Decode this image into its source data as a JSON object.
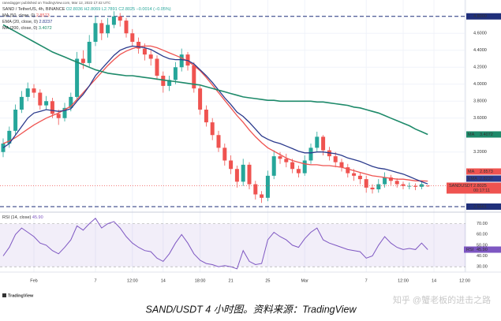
{
  "header": {
    "publisher": "ranedagger published on TradingView.com, Mar 12, 2022 17:42 UTC",
    "symbol": "SAND / TetherUS, 4h, BINANCE",
    "ohlc": "O2.8036 H2.8069 L2.7891 C2.8025 −0.0014 (−0.05%)"
  },
  "chart_data": {
    "type": "candlestick",
    "categories": [
      null,
      null,
      null,
      null,
      null,
      "Feb",
      null,
      null,
      null,
      null,
      null,
      null,
      null,
      null,
      null,
      "7",
      null,
      null,
      null,
      null,
      null,
      "12:00",
      null,
      null,
      null,
      null,
      "14",
      null,
      null,
      null,
      null,
      null,
      "18:00",
      null,
      null,
      null,
      null,
      "21",
      null,
      null,
      null,
      null,
      null,
      "25",
      null,
      null,
      null,
      null,
      null,
      "Mar",
      null,
      null,
      null,
      null,
      null,
      null,
      null,
      null,
      null,
      "7",
      null,
      null,
      null,
      null,
      null,
      "12:00",
      null,
      null,
      null,
      null,
      "14",
      null,
      null,
      null,
      null,
      "12:00"
    ],
    "open": [
      3.2,
      3.3,
      3.45,
      3.7,
      3.85,
      3.95,
      3.9,
      3.75,
      3.8,
      3.65,
      3.6,
      3.72,
      3.85,
      4.3,
      4.25,
      4.5,
      4.72,
      4.6,
      4.7,
      4.8,
      4.75,
      4.6,
      4.5,
      4.42,
      4.35,
      4.3,
      4.1,
      3.98,
      4.05,
      4.2,
      4.35,
      4.22,
      3.95,
      3.7,
      3.55,
      3.4,
      3.25,
      3.1,
      3.0,
      2.85,
      3.05,
      2.82,
      2.7,
      2.66,
      2.92,
      3.15,
      3.12,
      3.08,
      3.0,
      2.95,
      3.1,
      3.25,
      3.38,
      3.22,
      3.15,
      3.08,
      3.02,
      2.95,
      2.92,
      2.88,
      2.78,
      2.76,
      2.82,
      2.9,
      2.86,
      2.82,
      2.8,
      2.8,
      2.79,
      2.8036,
      null,
      null,
      null,
      null,
      null,
      null
    ],
    "high": [
      3.36,
      3.5,
      3.76,
      3.92,
      4.02,
      4.0,
      3.94,
      3.86,
      3.84,
      3.7,
      3.78,
      3.9,
      4.38,
      4.4,
      4.58,
      4.8,
      4.76,
      4.78,
      4.86,
      4.84,
      4.78,
      4.65,
      4.55,
      4.48,
      4.4,
      4.34,
      4.15,
      4.1,
      4.26,
      4.42,
      4.38,
      4.26,
      3.98,
      3.75,
      3.6,
      3.45,
      3.3,
      3.16,
      3.04,
      3.12,
      3.08,
      2.86,
      2.74,
      2.98,
      3.22,
      3.2,
      3.18,
      3.12,
      3.04,
      3.16,
      3.3,
      3.44,
      3.4,
      3.26,
      3.2,
      3.12,
      3.06,
      3.0,
      2.96,
      2.92,
      2.82,
      2.88,
      2.96,
      2.93,
      2.89,
      2.85,
      2.84,
      2.83,
      2.86,
      2.8069,
      null,
      null,
      null,
      null,
      null,
      null
    ],
    "low": [
      3.14,
      3.25,
      3.4,
      3.66,
      3.8,
      3.84,
      3.7,
      3.7,
      3.6,
      3.52,
      3.56,
      3.68,
      3.82,
      4.18,
      4.2,
      4.45,
      4.52,
      4.55,
      4.66,
      4.68,
      4.55,
      4.44,
      4.36,
      4.28,
      4.22,
      4.05,
      3.9,
      3.92,
      4.0,
      4.15,
      4.16,
      3.9,
      3.64,
      3.5,
      3.34,
      3.2,
      3.04,
      2.94,
      2.78,
      2.8,
      2.76,
      2.64,
      2.6,
      2.62,
      2.88,
      3.06,
      3.02,
      2.95,
      2.9,
      2.92,
      3.06,
      3.2,
      3.16,
      3.1,
      3.02,
      2.97,
      2.9,
      2.86,
      2.82,
      2.72,
      2.71,
      2.72,
      2.78,
      2.81,
      2.78,
      2.76,
      2.76,
      2.75,
      2.76,
      2.7891,
      null,
      null,
      null,
      null,
      null,
      null
    ],
    "close": [
      3.3,
      3.45,
      3.7,
      3.85,
      3.95,
      3.9,
      3.75,
      3.8,
      3.65,
      3.6,
      3.72,
      3.85,
      4.3,
      4.25,
      4.5,
      4.72,
      4.6,
      4.7,
      4.8,
      4.75,
      4.6,
      4.5,
      4.42,
      4.35,
      4.3,
      4.1,
      3.98,
      4.05,
      4.2,
      4.35,
      4.22,
      3.95,
      3.7,
      3.55,
      3.4,
      3.25,
      3.1,
      3.0,
      2.85,
      3.05,
      2.82,
      2.7,
      2.66,
      2.92,
      3.15,
      3.12,
      3.08,
      3.0,
      2.95,
      3.1,
      3.25,
      3.38,
      3.22,
      3.15,
      3.08,
      3.02,
      2.95,
      2.92,
      2.88,
      2.78,
      2.76,
      2.82,
      2.9,
      2.86,
      2.82,
      2.8,
      2.8,
      2.79,
      2.82,
      2.8025,
      null,
      null,
      null,
      null,
      null,
      null
    ],
    "up_color": "#26a69a",
    "down_color": "#ef5350",
    "ylim": [
      2.5,
      4.9
    ],
    "yticks": [
      {
        "value": 4.6,
        "label": "4.6000"
      },
      {
        "value": 4.4,
        "label": "4.4000"
      },
      {
        "value": 4.2,
        "label": "4.2000"
      },
      {
        "value": 4.0,
        "label": "4.0000"
      },
      {
        "value": 3.8,
        "label": "3.8000"
      },
      {
        "value": 3.6,
        "label": "3.6000"
      },
      {
        "value": 3.2,
        "label": "3.2000"
      }
    ],
    "grid": true,
    "levels": {
      "color": "#1f2f7a",
      "lines": [
        {
          "value": 4.8,
          "label": "4.8000"
        },
        {
          "value": 2.5561,
          "label": "2.5561"
        }
      ]
    },
    "price_label": {
      "name": "SANDUSDT",
      "countdown": "00:17:11"
    },
    "series": [
      {
        "name": "MA (50, close, 0)",
        "short_name": "MA",
        "color": "#ef5350",
        "values": [
          3.3,
          3.33,
          3.37,
          3.42,
          3.47,
          3.52,
          3.56,
          3.6,
          3.63,
          3.66,
          3.7,
          3.74,
          3.82,
          3.9,
          3.98,
          4.06,
          4.14,
          4.22,
          4.29,
          4.35,
          4.39,
          4.42,
          4.44,
          4.45,
          4.45,
          4.43,
          4.4,
          4.37,
          4.34,
          4.31,
          4.27,
          4.22,
          4.16,
          4.08,
          3.99,
          3.9,
          3.81,
          3.72,
          3.63,
          3.55,
          3.46,
          3.38,
          3.31,
          3.25,
          3.21,
          3.17,
          3.13,
          3.1,
          3.08,
          3.06,
          3.05,
          3.05,
          3.04,
          3.04,
          3.03,
          3.02,
          3.0,
          2.98,
          2.96,
          2.94,
          2.92,
          2.91,
          2.9,
          2.89,
          2.88,
          2.88,
          2.87,
          2.86,
          2.86,
          2.8573,
          null,
          null,
          null,
          null,
          null,
          null
        ]
      },
      {
        "name": "EMA (20, close, 0)",
        "short_name": "EMA",
        "color": "#2b3a8c",
        "values": [
          3.25,
          3.3,
          3.4,
          3.5,
          3.6,
          3.66,
          3.68,
          3.7,
          3.69,
          3.68,
          3.69,
          3.71,
          3.8,
          3.88,
          3.98,
          4.1,
          4.18,
          4.26,
          4.34,
          4.4,
          4.43,
          4.45,
          4.44,
          4.43,
          4.41,
          4.37,
          4.33,
          4.3,
          4.29,
          4.29,
          4.28,
          4.24,
          4.17,
          4.1,
          4.02,
          3.93,
          3.84,
          3.76,
          3.67,
          3.62,
          3.55,
          3.47,
          3.39,
          3.35,
          3.32,
          3.3,
          3.27,
          3.24,
          3.21,
          3.19,
          3.19,
          3.2,
          3.2,
          3.19,
          3.18,
          3.16,
          3.13,
          3.11,
          3.09,
          3.06,
          3.03,
          3.01,
          3.0,
          2.98,
          2.96,
          2.94,
          2.91,
          2.88,
          2.85,
          2.8237,
          null,
          null,
          null,
          null,
          null,
          null
        ]
      },
      {
        "name": "MA (200, close, 0)",
        "short_name": "MA",
        "color": "#1e8a6a",
        "values": [
          4.7,
          4.66,
          4.62,
          4.58,
          4.54,
          4.5,
          4.46,
          4.42,
          4.38,
          4.35,
          4.32,
          4.29,
          4.26,
          4.23,
          4.2,
          4.17,
          4.15,
          4.13,
          4.12,
          4.11,
          4.1,
          4.1,
          4.09,
          4.08,
          4.07,
          4.06,
          4.05,
          4.04,
          4.03,
          4.02,
          4.01,
          4.0,
          3.99,
          3.97,
          3.95,
          3.93,
          3.91,
          3.89,
          3.87,
          3.85,
          3.84,
          3.83,
          3.82,
          3.81,
          3.81,
          3.8,
          3.8,
          3.8,
          3.8,
          3.8,
          3.8,
          3.79,
          3.79,
          3.78,
          3.77,
          3.76,
          3.75,
          3.73,
          3.72,
          3.7,
          3.68,
          3.66,
          3.63,
          3.6,
          3.57,
          3.54,
          3.51,
          3.47,
          3.44,
          3.4072,
          null,
          null,
          null,
          null,
          null,
          null
        ]
      }
    ],
    "rsi": {
      "name": "RSI (14, close)",
      "short_name": "RSI",
      "color": "#7e57c2",
      "band": [
        30,
        70
      ],
      "ylim": [
        25,
        80
      ],
      "yticks": [
        {
          "value": 70,
          "label": "70.00"
        },
        {
          "value": 60,
          "label": "60.00"
        },
        {
          "value": 50,
          "label": "50.00"
        },
        {
          "value": 40,
          "label": "40.00"
        },
        {
          "value": 30,
          "label": "30.00"
        }
      ],
      "values": [
        40,
        48,
        60,
        66,
        62,
        58,
        52,
        50,
        45,
        42,
        48,
        55,
        68,
        64,
        70,
        75,
        66,
        70,
        72,
        66,
        58,
        52,
        48,
        45,
        44,
        38,
        35,
        42,
        52,
        60,
        52,
        42,
        36,
        33,
        32,
        30,
        31,
        30,
        28,
        45,
        35,
        32,
        33,
        55,
        62,
        58,
        55,
        50,
        48,
        56,
        62,
        66,
        55,
        52,
        50,
        48,
        46,
        45,
        44,
        38,
        40,
        50,
        58,
        52,
        48,
        46,
        47,
        46,
        52,
        45.9,
        null,
        null,
        null,
        null,
        null,
        null
      ],
      "last_label": "45.90"
    }
  },
  "logo": "TradingView",
  "caption": "SAND/USDT 4 小时图。资料来源：TradingView",
  "watermark": "知乎 @蟹老板的进击之路"
}
